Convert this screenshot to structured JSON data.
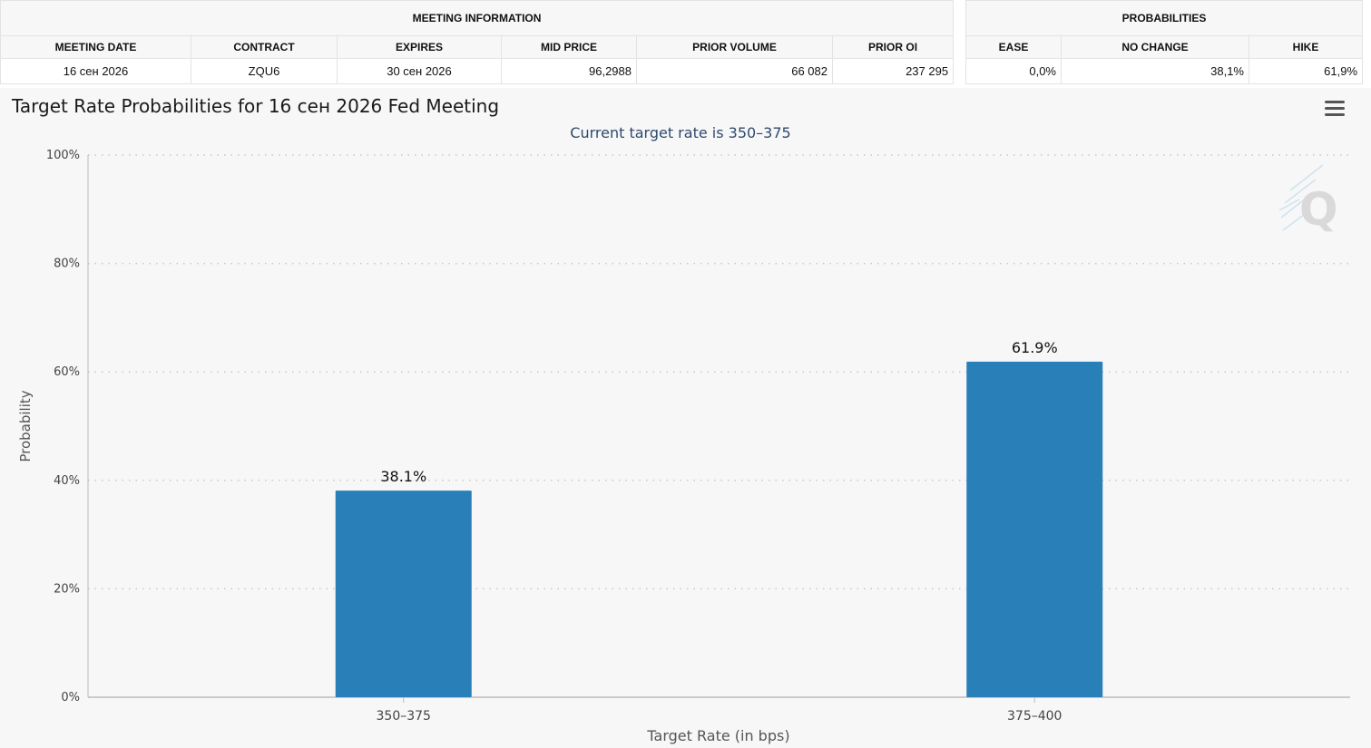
{
  "meeting_info": {
    "group_label": "MEETING INFORMATION",
    "headers": [
      "MEETING DATE",
      "CONTRACT",
      "EXPIRES",
      "MID PRICE",
      "PRIOR VOLUME",
      "PRIOR OI"
    ],
    "row": [
      "16 сен 2026",
      "ZQU6",
      "30 сен 2026",
      "96,2988",
      "66 082",
      "237 295"
    ]
  },
  "probabilities": {
    "group_label": "PROBABILITIES",
    "headers": [
      "EASE",
      "NO CHANGE",
      "HIKE"
    ],
    "row": [
      "0,0%",
      "38,1%",
      "61,9%"
    ]
  },
  "chart": {
    "menu_icon": "hamburger-menu-icon",
    "logo_icon": "q-logo-icon"
  },
  "chart_data": {
    "type": "bar",
    "title": "Target Rate Probabilities for 16 сен 2026 Fed Meeting",
    "subtitle": "Current target rate is 350–375",
    "xlabel": "Target Rate (in bps)",
    "ylabel": "Probability",
    "categories": [
      "350–375",
      "375–400"
    ],
    "values": [
      38.1,
      61.9
    ],
    "data_labels": [
      "38.1%",
      "61.9%"
    ],
    "ylim": [
      0,
      100
    ],
    "y_ticks": [
      0,
      20,
      40,
      60,
      80,
      100
    ],
    "y_tick_labels": [
      "0%",
      "20%",
      "40%",
      "60%",
      "80%",
      "100%"
    ],
    "grid": true,
    "legend": "none",
    "bar_color": "#2980b9",
    "title_color": "#1a1a1a",
    "subtitle_color": "#2f4a6e"
  }
}
